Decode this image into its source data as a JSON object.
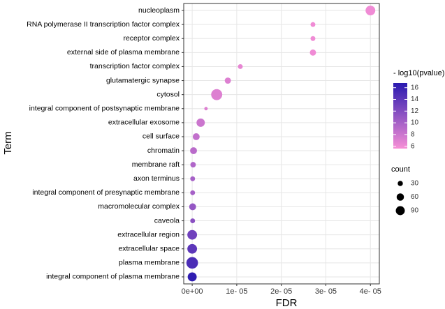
{
  "chart_data": {
    "type": "bubble",
    "x_label": "FDR",
    "y_label": "Term",
    "categories": [
      "nucleoplasm",
      "RNA polymerase II transcription factor complex",
      "receptor complex",
      "external side of plasma membrane",
      "transcription factor complex",
      "glutamatergic synapse",
      "cytosol",
      "integral component of postsynaptic membrane",
      "extracellular exosome",
      "cell surface",
      "chromatin",
      "membrane raft",
      "axon terminus",
      "integral component of presynaptic membrane",
      "macromolecular complex",
      "caveola",
      "extracellular region",
      "extracellular space",
      "plasma membrane",
      "integral component of plasma membrane"
    ],
    "values": [
      4e-05,
      2.71e-05,
      2.71e-05,
      2.71e-05,
      1.08e-05,
      8e-06,
      5.5e-06,
      3.1e-06,
      1.9e-06,
      9e-07,
      3e-07,
      2e-07,
      1e-07,
      1e-07,
      1e-07,
      1e-07,
      0,
      0,
      0,
      0
    ],
    "sizes": [
      105,
      26,
      26,
      43,
      26,
      43,
      136,
      13,
      77,
      53,
      53,
      34,
      26,
      26,
      53,
      26,
      104,
      104,
      150,
      90
    ],
    "color_values": [
      6,
      6,
      6,
      6,
      6.5,
      7,
      7,
      7,
      8,
      8.5,
      9,
      9.5,
      10,
      10,
      11,
      11.5,
      13,
      14,
      15,
      16.5
    ],
    "xlim": [
      -1.9e-06,
      4.2e-05
    ],
    "xticks": [
      {
        "value": 0,
        "label": "0e+00"
      },
      {
        "value": 1e-05,
        "label": "1e- 05"
      },
      {
        "value": 2e-05,
        "label": "2e- 05"
      },
      {
        "value": 3e-05,
        "label": "3e- 05"
      },
      {
        "value": 4e-05,
        "label": "4e- 05"
      }
    ],
    "grid": true,
    "color_low": "#f78fd6",
    "color_high": "#2a1ab0",
    "color_legend": {
      "title": "- log10(pvalue)",
      "lim": [
        5.6,
        16.8
      ],
      "ticks": [
        6,
        8,
        10,
        12,
        14,
        16
      ]
    },
    "size_legend": {
      "title": "count",
      "values": [
        30,
        60,
        90
      ]
    }
  }
}
